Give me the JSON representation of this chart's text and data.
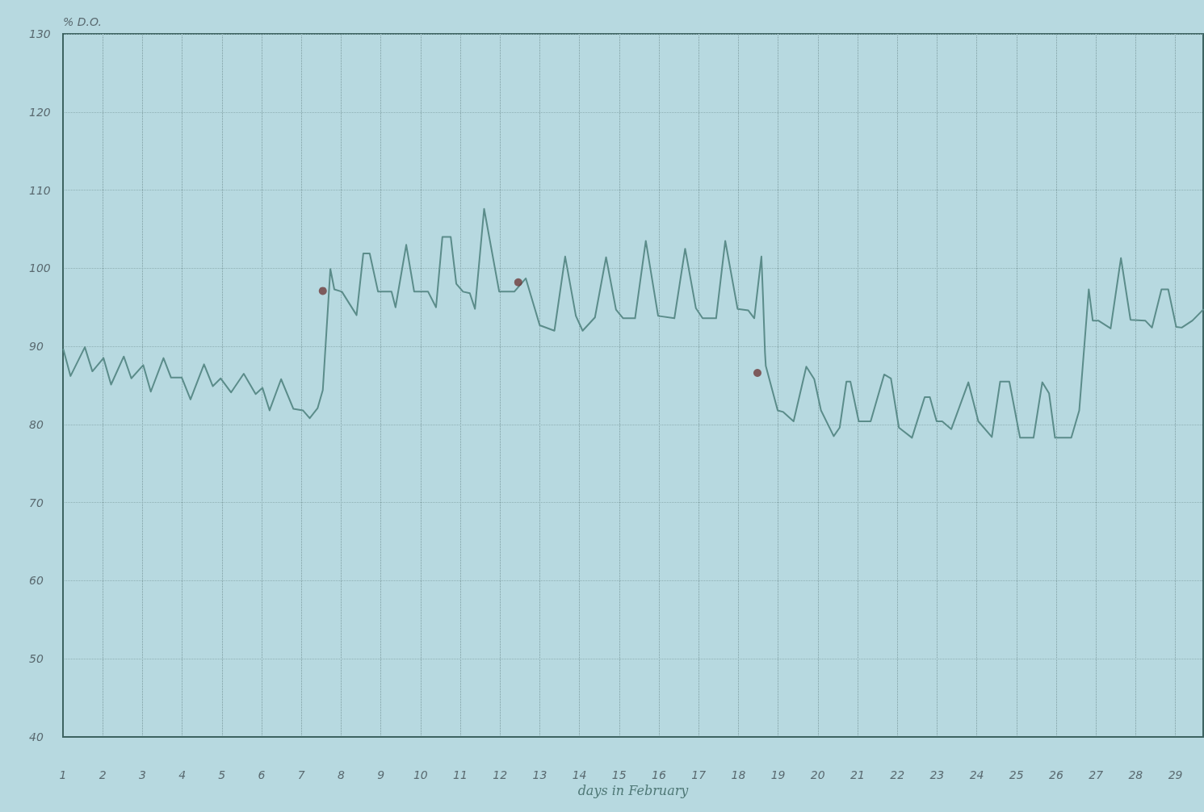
{
  "chart_data": {
    "type": "line",
    "ylabel": "% D.O.",
    "xlabel": "days in February",
    "xlim": [
      1,
      29.7
    ],
    "xticks": [
      1,
      2,
      3,
      4,
      5,
      6,
      7,
      8,
      9,
      10,
      11,
      12,
      13,
      14,
      15,
      16,
      17,
      18,
      19,
      20,
      21,
      22,
      23,
      24,
      25,
      26,
      27,
      28,
      29
    ],
    "ylim": [
      40,
      130
    ],
    "yticks": [
      40,
      50,
      60,
      70,
      80,
      90,
      100,
      110,
      120,
      130
    ],
    "grid": true,
    "line_style": "solid",
    "series": [
      {
        "color": "#5b8c8a",
        "x": [
          1.01,
          1.19,
          1.55,
          1.74,
          2.02,
          2.21,
          2.53,
          2.72,
          3.02,
          3.21,
          3.53,
          3.72,
          3.99,
          4.21,
          4.55,
          4.77,
          4.97,
          5.23,
          5.55,
          5.85,
          6.02,
          6.2,
          6.49,
          6.8,
          7.04,
          7.21,
          7.41,
          7.54,
          7.73,
          7.83,
          8.02,
          8.39,
          8.56,
          8.72,
          8.93,
          9.27,
          9.37,
          9.64,
          9.84,
          10.19,
          10.39,
          10.55,
          10.76,
          10.9,
          11.07,
          11.24,
          11.37,
          11.6,
          11.98,
          12.36,
          12.65,
          13.0,
          13.37,
          13.64,
          13.91,
          14.08,
          14.39,
          14.67,
          14.92,
          15.1,
          15.4,
          15.67,
          15.98,
          16.39,
          16.66,
          16.93,
          17.1,
          17.44,
          17.67,
          17.98,
          18.25,
          18.4,
          18.58,
          18.62,
          18.67,
          18.69,
          18.99,
          19.13,
          19.39,
          19.71,
          19.91,
          20.08,
          20.4,
          20.55,
          20.72,
          20.82,
          21.03,
          21.33,
          21.67,
          21.84,
          22.04,
          22.37,
          22.69,
          22.82,
          22.99,
          23.13,
          23.36,
          23.79,
          24.04,
          24.38,
          24.59,
          24.82,
          25.09,
          25.43,
          25.65,
          25.82,
          25.97,
          26.38,
          26.58,
          26.82,
          26.92,
          27.06,
          27.37,
          27.63,
          27.87,
          28.24,
          28.41,
          28.65,
          28.82,
          29.02,
          29.16,
          29.43,
          29.7
        ],
        "values": [
          89.6,
          86.2,
          89.9,
          86.8,
          88.5,
          85.1,
          88.7,
          85.9,
          87.6,
          84.2,
          88.5,
          86.0,
          86.0,
          83.2,
          87.7,
          84.9,
          85.9,
          84.1,
          86.5,
          83.9,
          84.7,
          81.8,
          85.8,
          82.0,
          81.8,
          80.8,
          82.1,
          84.4,
          99.9,
          97.3,
          97.0,
          94.0,
          101.9,
          101.9,
          97.0,
          97.0,
          95.0,
          103.0,
          97.0,
          97.0,
          95.0,
          104.0,
          104.0,
          98.0,
          97.0,
          96.8,
          94.8,
          107.6,
          97.0,
          97.0,
          98.7,
          92.7,
          92.0,
          101.5,
          93.9,
          92.0,
          93.7,
          101.4,
          94.7,
          93.6,
          93.6,
          103.5,
          93.9,
          93.6,
          102.5,
          94.9,
          93.6,
          93.6,
          103.5,
          94.8,
          94.6,
          93.6,
          101.5,
          96.4,
          89.2,
          87.5,
          81.8,
          81.6,
          80.4,
          87.4,
          85.8,
          81.8,
          78.5,
          79.6,
          85.5,
          85.5,
          80.4,
          80.4,
          86.4,
          85.9,
          79.6,
          78.3,
          83.5,
          83.5,
          80.4,
          80.4,
          79.4,
          85.4,
          80.4,
          78.4,
          85.5,
          85.5,
          78.3,
          78.3,
          85.4,
          84.0,
          78.3,
          78.3,
          81.8,
          97.3,
          93.3,
          93.3,
          92.3,
          101.3,
          93.4,
          93.3,
          92.4,
          97.3,
          97.3,
          92.5,
          92.4,
          93.3,
          94.7
        ]
      },
      {
        "type": "scatter",
        "color": "#6e3b3b",
        "x": [
          7.54,
          12.46,
          18.48
        ],
        "values": [
          97.1,
          98.2,
          86.6
        ]
      }
    ]
  }
}
